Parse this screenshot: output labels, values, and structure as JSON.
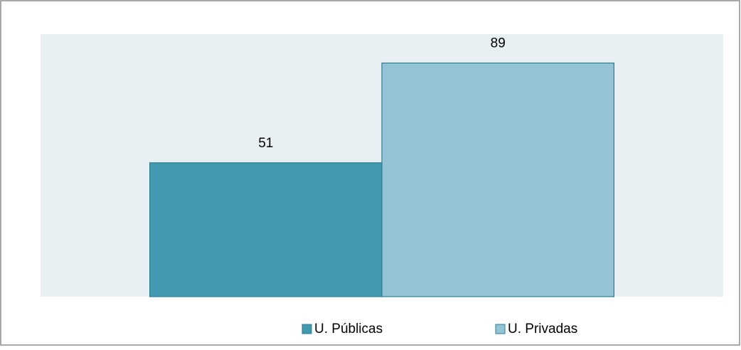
{
  "chart_data": {
    "type": "bar",
    "categories": [
      null
    ],
    "series": [
      {
        "name": "U. Públicas",
        "color": "#4299b0",
        "values": [
          51
        ]
      },
      {
        "name": "U. Privadas",
        "color": "#93c3d5",
        "values": [
          89
        ]
      }
    ],
    "ylim": [
      0,
      100
    ],
    "legend": "bottom"
  }
}
